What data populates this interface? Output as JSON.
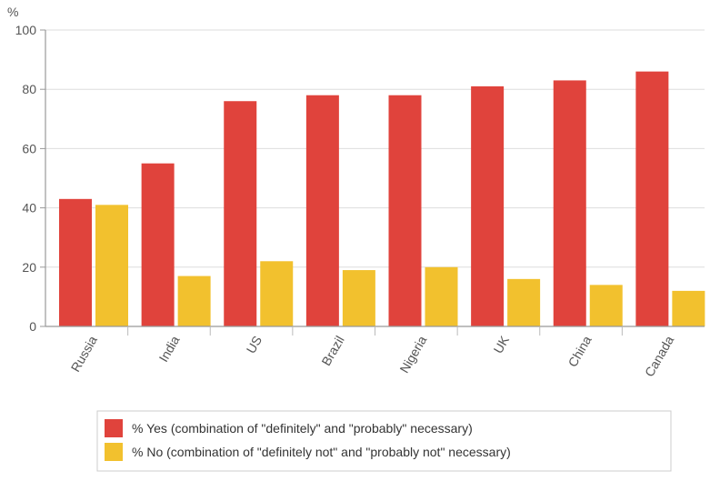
{
  "chart_data": {
    "type": "bar",
    "ylabel": "%",
    "ylim": [
      0,
      100
    ],
    "yticks": [
      0,
      20,
      40,
      60,
      80,
      100
    ],
    "categories": [
      "Russia",
      "India",
      "US",
      "Brazil",
      "Nigeria",
      "UK",
      "China",
      "Canada"
    ],
    "series": [
      {
        "name": "% Yes (combination of \"definitely\" and \"probably\" necessary)",
        "color": "#e0433c",
        "values": [
          43,
          55,
          76,
          78,
          78,
          81,
          83,
          86
        ]
      },
      {
        "name": "% No (combination of \"definitely not\" and \"probably not\" necessary)",
        "color": "#f2c12e",
        "values": [
          41,
          17,
          22,
          19,
          20,
          16,
          14,
          12
        ]
      }
    ],
    "grid": "horizontal",
    "legend_position": "bottom"
  }
}
